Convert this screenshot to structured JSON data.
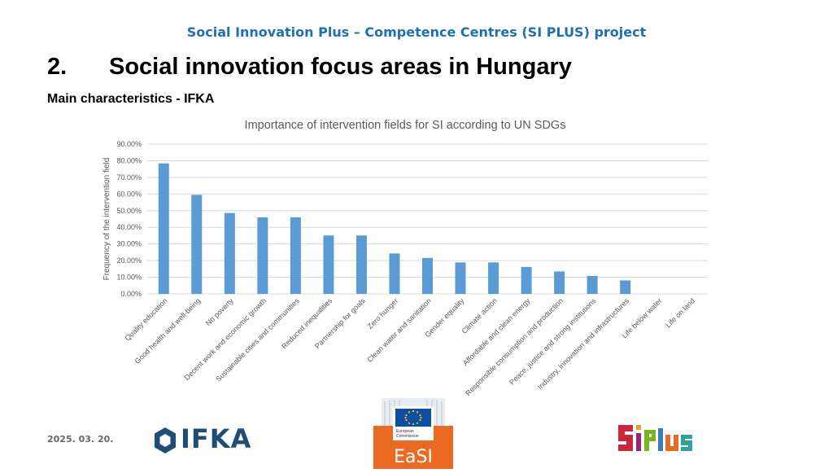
{
  "header": {
    "project": "Social Innovation Plus – Competence Centres (SI PLUS) project",
    "section_number": "2.",
    "section_title": "Social innovation focus areas in Hungary",
    "subtitle": "Main characteristics - IFKA"
  },
  "chart_data": {
    "type": "bar",
    "title": "Importance of intervention fields for SI according to UN SDGs",
    "ylabel": "Frequency of the intervention field",
    "xlabel": "",
    "ylim": [
      0,
      0.9
    ],
    "yticks": [
      "0.00%",
      "10.00%",
      "20.00%",
      "30.00%",
      "40.00%",
      "50.00%",
      "60.00%",
      "70.00%",
      "80.00%",
      "90.00%"
    ],
    "grid": true,
    "color": "#5b9bd5",
    "categories": [
      "Quality education",
      "Good health and well-being",
      "No poverty",
      "Decent work and economic growth",
      "Sustainable cities and communities",
      "Reduced inequalities",
      "Partnership for goals",
      "Zero hunger",
      "Clean water and sanitation",
      "Gender equality",
      "Climate action",
      "Affordable and clean energy",
      "Responsible consumption and production",
      "Peace, justice and strong institutions",
      "Industry, innovation and infrastructures",
      "Life below water",
      "Life on land"
    ],
    "values": [
      0.784,
      0.595,
      0.486,
      0.46,
      0.46,
      0.351,
      0.351,
      0.243,
      0.216,
      0.189,
      0.189,
      0.162,
      0.135,
      0.108,
      0.081,
      0,
      0
    ]
  },
  "footer": {
    "date": "2025. 03. 20.",
    "logo_ifka": "IFKA",
    "logo_easi": "EaSI",
    "logo_ec_line1": "European",
    "logo_ec_line2": "Commission"
  }
}
